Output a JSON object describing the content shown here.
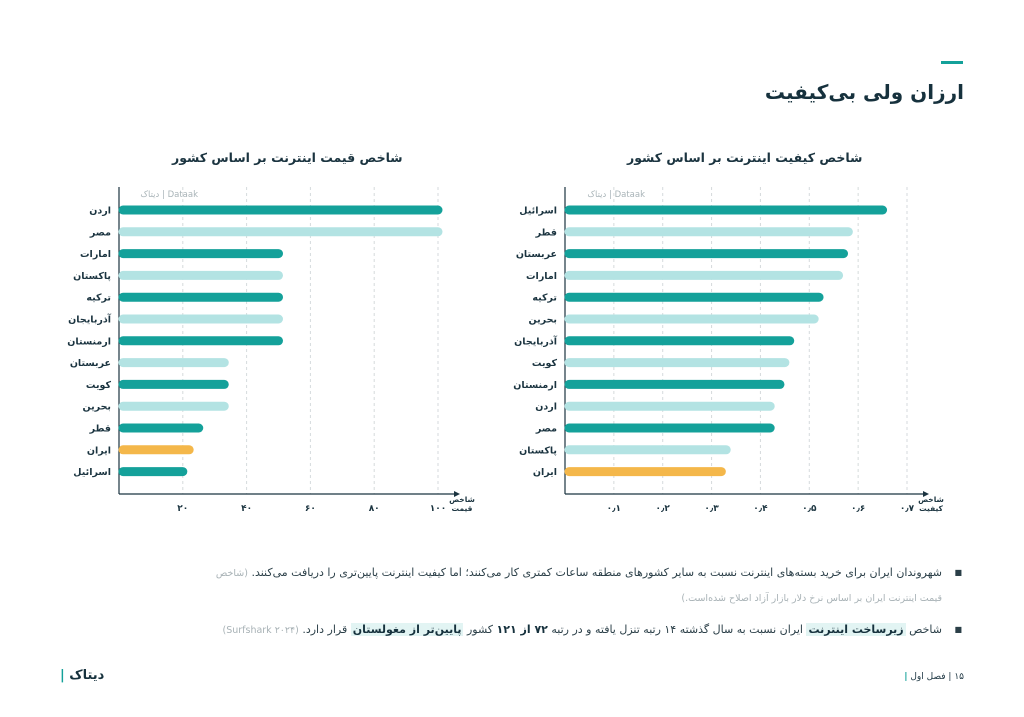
{
  "page": {
    "title": "ارزان ولی بی‌کیفیت",
    "accent_color": "#14a19a"
  },
  "colors": {
    "dark_teal": "#14a19a",
    "light_teal": "#b3e3e3",
    "highlight": "#f4b74a"
  },
  "chart_data": [
    {
      "type": "bar",
      "orientation": "horizontal",
      "title": "شاخص قیمت اینترنت بر اساس کشور",
      "source": "دیتاک | Dataak",
      "xlabel": "شاخص قیمت",
      "xlim": [
        0,
        100
      ],
      "xticks": [
        20,
        40,
        60,
        80,
        100
      ],
      "xtick_labels": [
        "۲۰",
        "۴۰",
        "۶۰",
        "۸۰",
        "۱۰۰"
      ],
      "grid": true,
      "categories": [
        "اردن",
        "مصر",
        "امارات",
        "پاکستان",
        "ترکیه",
        "آذربایجان",
        "ارمنستان",
        "عربستان",
        "کویت",
        "بحرین",
        "قطر",
        "ایران",
        "اسرائیل"
      ],
      "values": [
        100,
        100,
        50,
        50,
        50,
        50,
        50,
        33,
        33,
        33,
        25,
        22,
        20
      ],
      "bar_colors": [
        "dark",
        "light",
        "dark",
        "light",
        "dark",
        "light",
        "dark",
        "light",
        "dark",
        "light",
        "dark",
        "highlight",
        "dark"
      ]
    },
    {
      "type": "bar",
      "orientation": "horizontal",
      "title": "شاخص کیفیت اینترنت بر اساس کشور",
      "source": "دیتاک | Dataak",
      "xlabel": "شاخص کیفیت",
      "xlim": [
        0,
        0.7
      ],
      "xticks": [
        0.1,
        0.2,
        0.3,
        0.4,
        0.5,
        0.6,
        0.7
      ],
      "xtick_labels": [
        "۰٫۱",
        "۰٫۲",
        "۰٫۳",
        "۰٫۴",
        "۰٫۵",
        "۰٫۶",
        "۰٫۷"
      ],
      "grid": true,
      "categories": [
        "اسرائیل",
        "قطر",
        "عربستان",
        "امارات",
        "ترکیه",
        "بحرین",
        "آذربایجان",
        "کویت",
        "ارمنستان",
        "اردن",
        "مصر",
        "پاکستان",
        "ایران"
      ],
      "values": [
        0.65,
        0.58,
        0.57,
        0.56,
        0.52,
        0.51,
        0.46,
        0.45,
        0.44,
        0.42,
        0.42,
        0.33,
        0.32
      ],
      "bar_colors": [
        "dark",
        "light",
        "dark",
        "light",
        "dark",
        "light",
        "dark",
        "light",
        "dark",
        "light",
        "dark",
        "light",
        "highlight"
      ]
    }
  ],
  "bullets": {
    "b1_main": "شهروندان ایران برای خرید بسته‌های اینترنت نسبت به سایر کشورهای منطقه ساعات کمتری کار می‌کنند؛ اما کیفیت اینترنت پایین‌تری را دریافت می‌کنند.",
    "b1_note_a": "(شاخص",
    "b1_note_b": "قیمت اینترنت ایران بر اساس نرخ دلار بازار آزاد اصلاح شده‌است.)",
    "b2_pre": "شاخص",
    "b2_bold1": "زیرساخت اینترنت",
    "b2_mid1": "ایران نسبت به سال گذشته ۱۴ رتبه تنزل یافته و در رتبه",
    "b2_bold2": "۷۲ از ۱۲۱",
    "b2_mid2": "کشور",
    "b2_bold3": "پایین‌تر از مغولستان",
    "b2_end": "قرار دارد.",
    "b2_note": "(Surfshark ۲۰۲۴)",
    "bullet_symbol": "■"
  },
  "footer": {
    "page_label": "۱۵ | فصل اول",
    "logo_text": "دیتاک"
  }
}
